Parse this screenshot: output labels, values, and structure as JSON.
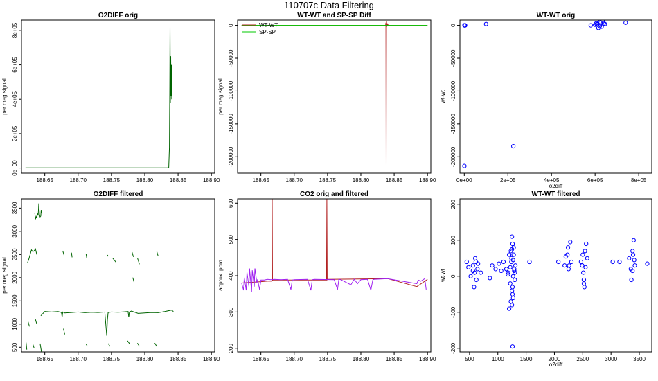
{
  "page": {
    "title": "110707c   Data Filtering"
  },
  "colors": {
    "green": "#006400",
    "lime": "#00c800",
    "red": "#b22222",
    "purple": "#a020f0",
    "blue": "#0000ff"
  },
  "chart_data": [
    {
      "id": "o2diff-orig",
      "type": "line",
      "title": "O2DIFF orig",
      "xlabel": "",
      "ylabel": "per meg signal",
      "xlim": [
        188.615,
        188.905
      ],
      "ylim": [
        -30000,
        860000
      ],
      "xticks": [
        188.65,
        188.7,
        188.75,
        188.8,
        188.85,
        188.9
      ],
      "xtick_labels": [
        "188.65",
        "188.70",
        "188.75",
        "188.80",
        "188.85",
        "188.90"
      ],
      "yticks": [
        0,
        200000,
        400000,
        600000,
        800000
      ],
      "ytick_labels": [
        "0e+00",
        "2e+05",
        "4e+05",
        "6e+05",
        "8e+05"
      ],
      "grid": false,
      "series": [
        {
          "color": "#006400",
          "x": [
            188.621,
            188.7,
            188.8,
            188.836,
            188.837,
            188.8375,
            188.838,
            188.8385,
            188.839,
            188.8395,
            188.84,
            188.8405,
            188.841
          ],
          "y": [
            1200,
            1250,
            1300,
            1400,
            120000,
            480000,
            820000,
            380000,
            650000,
            420000,
            600000,
            400000,
            520000
          ]
        }
      ]
    },
    {
      "id": "wt-sp-diff",
      "type": "line",
      "title": "WT-WT and SP-SP Diff",
      "xlabel": "",
      "ylabel": "per meg signal",
      "xlim": [
        188.615,
        188.905
      ],
      "ylim": [
        -225000,
        8000
      ],
      "xticks": [
        188.65,
        188.7,
        188.75,
        188.8,
        188.85,
        188.9
      ],
      "xtick_labels": [
        "188.65",
        "188.70",
        "188.75",
        "188.80",
        "188.85",
        "188.90"
      ],
      "yticks": [
        0,
        -50000,
        -100000,
        -150000,
        -200000
      ],
      "ytick_labels": [
        "0",
        "-50000",
        "-100000",
        "-150000",
        "-200000"
      ],
      "grid": false,
      "legend": {
        "position": "top-left",
        "entries": [
          "WT-WT",
          "SP-SP"
        ]
      },
      "series": [
        {
          "name": "WT-WT",
          "color": "#b22222",
          "x": [
            188.621,
            188.837,
            188.8375,
            188.838,
            188.8385,
            188.839,
            188.8395,
            188.84,
            188.8405,
            188.841,
            188.84105,
            188.9
          ],
          "y": [
            0,
            0,
            4000,
            -214000,
            6000,
            -2000,
            3000,
            -1000,
            2000,
            0,
            0,
            0
          ]
        },
        {
          "name": "SP-SP",
          "color": "#00c800",
          "x": [
            188.621,
            188.75,
            188.9
          ],
          "y": [
            0,
            0,
            0
          ]
        }
      ]
    },
    {
      "id": "wt-wt-orig",
      "type": "scatter",
      "title": "WT-WT orig",
      "xlabel": "o2diff",
      "ylabel": "wt-wt",
      "xlim": [
        -20000,
        860000
      ],
      "ylim": [
        -225000,
        8000
      ],
      "xticks": [
        0,
        200000,
        400000,
        600000,
        800000
      ],
      "xtick_labels": [
        "0e+00",
        "2e+05",
        "4e+05",
        "6e+05",
        "8e+05"
      ],
      "yticks": [
        0,
        -50000,
        -100000,
        -150000,
        -200000
      ],
      "ytick_labels": [
        "0",
        "-50000",
        "-100000",
        "-150000",
        "-200000"
      ],
      "grid": false,
      "series": [
        {
          "color": "#0000ff",
          "marker": "open-circle",
          "x": [
            1000,
            2500,
            4000,
            1500,
            3000,
            500,
            100000,
            225000,
            1000,
            580000,
            600000,
            605000,
            612000,
            620000,
            625000,
            630000,
            640000,
            615000,
            608000,
            622000,
            635000,
            645000,
            740000
          ],
          "y": [
            0,
            100,
            -50,
            50,
            -20,
            -214000,
            2000,
            -184000,
            0,
            0,
            1000,
            3000,
            2000,
            5000,
            4000,
            -2000,
            3000,
            -4000,
            1500,
            -1000,
            6000,
            2000,
            4000
          ]
        }
      ]
    },
    {
      "id": "o2diff-filtered",
      "type": "line",
      "title": "O2DIFF filtered",
      "xlabel": "",
      "ylabel": "per meg signal",
      "xlim": [
        188.615,
        188.905
      ],
      "ylim": [
        400,
        3700
      ],
      "xticks": [
        188.65,
        188.7,
        188.75,
        188.8,
        188.85,
        188.9
      ],
      "xtick_labels": [
        "188.65",
        "188.70",
        "188.75",
        "188.80",
        "188.85",
        "188.90"
      ],
      "yticks": [
        500,
        1000,
        1500,
        2000,
        2500,
        3000,
        3500
      ],
      "ytick_labels": [
        "500",
        "1000",
        "1500",
        "2000",
        "2500",
        "3000",
        "3500"
      ],
      "grid": false,
      "series": [
        {
          "color": "#006400",
          "x": [
            188.644,
            188.65,
            188.66,
            188.67,
            188.675,
            188.676,
            188.677,
            188.68,
            188.69,
            188.7,
            188.71,
            188.72,
            188.73,
            188.74,
            188.743,
            188.744,
            188.745,
            188.75,
            188.76,
            188.77,
            188.775,
            188.776,
            188.777,
            188.78,
            188.79,
            188.8,
            188.81,
            188.82,
            188.83,
            188.84,
            188.843
          ],
          "y": [
            1180,
            1270,
            1260,
            1270,
            1250,
            1150,
            1260,
            1240,
            1250,
            1260,
            1245,
            1255,
            1250,
            1260,
            750,
            1100,
            1250,
            1260,
            1255,
            1265,
            1270,
            1150,
            1260,
            1280,
            1230,
            1240,
            1250,
            1245,
            1270,
            1300,
            1270
          ]
        },
        {
          "color": "#006400",
          "x": [
            188.635,
            188.636,
            188.637,
            188.638,
            188.639,
            188.64,
            188.641,
            188.642,
            188.643,
            188.644,
            188.6445,
            188.645,
            188.646
          ],
          "y": [
            3400,
            3260,
            3320,
            3290,
            3380,
            3340,
            3600,
            3350,
            3310,
            3330,
            3460,
            3400,
            3380
          ]
        },
        {
          "color": "#006400",
          "x": [
            188.624,
            188.626,
            188.628,
            188.63,
            188.632,
            188.634,
            188.636,
            188.638
          ],
          "y": [
            2320,
            2400,
            2500,
            2600,
            2560,
            2580,
            2620,
            2500
          ]
        }
      ],
      "fragments": [
        {
          "x": [
            188.625,
            188.627
          ],
          "y": [
            1050,
            950
          ]
        },
        {
          "x": [
            188.636,
            188.638
          ],
          "y": [
            1100,
            1000
          ]
        },
        {
          "x": [
            188.622,
            188.623
          ],
          "y": [
            600,
            450
          ]
        },
        {
          "x": [
            188.632,
            188.634
          ],
          "y": [
            570,
            480
          ]
        },
        {
          "x": [
            188.643,
            188.645
          ],
          "y": [
            580,
            400
          ]
        },
        {
          "x": [
            188.677,
            188.679
          ],
          "y": [
            2580,
            2480
          ]
        },
        {
          "x": [
            188.69,
            188.691
          ],
          "y": [
            2540,
            2440
          ]
        },
        {
          "x": [
            188.712,
            188.713
          ],
          "y": [
            2510,
            2420
          ]
        },
        {
          "x": [
            188.744,
            188.745
          ],
          "y": [
            2490,
            2460
          ]
        },
        {
          "x": [
            188.752,
            188.757
          ],
          "y": [
            2420,
            2330
          ]
        },
        {
          "x": [
            188.781,
            188.783
          ],
          "y": [
            2550,
            2450
          ]
        },
        {
          "x": [
            188.789,
            188.792
          ],
          "y": [
            2430,
            2290
          ]
        },
        {
          "x": [
            188.818,
            188.82
          ],
          "y": [
            2570,
            2470
          ]
        },
        {
          "x": [
            188.678,
            188.68
          ],
          "y": [
            900,
            780
          ]
        },
        {
          "x": [
            188.712,
            188.714
          ],
          "y": [
            570,
            520
          ]
        },
        {
          "x": [
            188.745,
            188.748
          ],
          "y": [
            580,
            520
          ]
        },
        {
          "x": [
            188.774,
            188.777
          ],
          "y": [
            640,
            580
          ]
        },
        {
          "x": [
            188.789,
            188.792
          ],
          "y": [
            590,
            520
          ]
        },
        {
          "x": [
            188.815,
            188.818
          ],
          "y": [
            590,
            520
          ]
        },
        {
          "x": [
            188.782,
            188.784
          ],
          "y": [
            2000,
            1900
          ]
        }
      ]
    },
    {
      "id": "co2-orig-filtered",
      "type": "line",
      "title": "CO2 orig and filtered",
      "xlabel": "",
      "ylabel": "approx. ppm",
      "xlim": [
        188.615,
        188.905
      ],
      "ylim": [
        190,
        612
      ],
      "xticks": [
        188.65,
        188.7,
        188.75,
        188.8,
        188.85,
        188.9
      ],
      "xtick_labels": [
        "188.65",
        "188.70",
        "188.75",
        "188.80",
        "188.85",
        "188.90"
      ],
      "yticks": [
        200,
        300,
        400,
        500,
        600
      ],
      "ytick_labels": [
        "200",
        "300",
        "400",
        "500",
        "600"
      ],
      "grid": false,
      "series": [
        {
          "color": "#b22222",
          "x": [
            188.621,
            188.66,
            188.6665,
            188.667,
            188.6675,
            188.668,
            188.7485,
            188.749,
            188.7495,
            188.75,
            188.84,
            188.884,
            188.9
          ],
          "y": [
            380,
            385,
            385,
            612,
            387,
            388,
            388,
            612,
            389,
            390,
            392,
            370,
            390
          ]
        },
        {
          "color": "#a020f0",
          "x": [
            188.621,
            188.624,
            188.625,
            188.628,
            188.629,
            188.632,
            188.633,
            188.636,
            188.637,
            188.64,
            188.641,
            188.644,
            188.645,
            188.648,
            188.65,
            188.655,
            188.66,
            188.665,
            188.67,
            188.68,
            188.69,
            188.695,
            188.697,
            188.7,
            188.72,
            188.725,
            188.727,
            188.73,
            188.76,
            188.765,
            188.767,
            188.77,
            188.785,
            188.79,
            188.795,
            188.8,
            188.81,
            188.815,
            188.818,
            188.82,
            188.84,
            188.884,
            188.886,
            188.89,
            188.896,
            188.898
          ],
          "y": [
            380,
            360,
            395,
            360,
            410,
            370,
            420,
            355,
            415,
            370,
            420,
            380,
            390,
            362,
            388,
            388,
            390,
            389,
            390,
            389,
            390,
            362,
            388,
            389,
            390,
            360,
            389,
            390,
            389,
            362,
            390,
            389,
            375,
            390,
            378,
            389,
            390,
            360,
            389,
            390,
            392,
            378,
            388,
            385,
            392,
            362
          ]
        }
      ]
    },
    {
      "id": "wt-wt-filtered",
      "type": "scatter",
      "title": "WT-WT filtered",
      "xlabel": "o2diff",
      "ylabel": "wt-wt",
      "xlim": [
        330,
        3720
      ],
      "ylim": [
        -210,
        215
      ],
      "xticks": [
        500,
        1000,
        1500,
        2000,
        2500,
        3000,
        3500
      ],
      "xtick_labels": [
        "500",
        "1000",
        "1500",
        "2000",
        "2500",
        "3000",
        "3500"
      ],
      "yticks": [
        200,
        100,
        0,
        -100,
        -200
      ],
      "ytick_labels": [
        "200",
        "100",
        "0",
        "-100",
        "-200"
      ],
      "grid": false,
      "series": [
        {
          "color": "#0000ff",
          "marker": "open-circle",
          "x": [
            450,
            480,
            520,
            560,
            590,
            600,
            620,
            640,
            580,
            560,
            610,
            650,
            700,
            860,
            900,
            960,
            1020,
            1060,
            1100,
            1150,
            1180,
            1200,
            1220,
            1230,
            1240,
            1250,
            1260,
            1270,
            1280,
            1290,
            1300,
            1310,
            1250,
            1230,
            1270,
            1260,
            1240,
            1280,
            1300,
            1260,
            1220,
            1200,
            1250,
            1290,
            1180,
            1260,
            1250,
            1270,
            1560,
            2070,
            2180,
            2200,
            2230,
            2240,
            2260,
            2280,
            2300,
            2250,
            2490,
            2500,
            2520,
            2540,
            2560,
            2580,
            2520,
            2470,
            2510,
            2530,
            2550,
            3030,
            3150,
            3320,
            3350,
            3380,
            3400,
            3420,
            3360,
            3390,
            3410,
            3380,
            3640
          ],
          "y": [
            40,
            25,
            0,
            30,
            10,
            50,
            -10,
            20,
            -30,
            15,
            40,
            35,
            10,
            -5,
            30,
            20,
            35,
            15,
            40,
            20,
            10,
            60,
            -20,
            70,
            50,
            -40,
            90,
            -60,
            80,
            20,
            -10,
            30,
            -80,
            -70,
            0,
            -30,
            40,
            60,
            10,
            -50,
            25,
            -90,
            110,
            15,
            5,
            -195,
            75,
            45,
            40,
            40,
            30,
            55,
            60,
            80,
            30,
            95,
            40,
            20,
            30,
            60,
            -20,
            70,
            90,
            50,
            -10,
            40,
            10,
            -30,
            25,
            40,
            40,
            50,
            20,
            70,
            100,
            30,
            -10,
            60,
            45,
            15,
            35
          ]
        }
      ]
    }
  ]
}
